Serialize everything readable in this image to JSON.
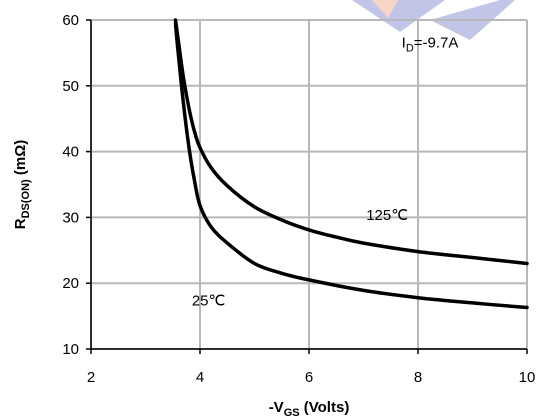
{
  "chart_data": {
    "type": "line",
    "xlabel": {
      "main": "-V",
      "sub": "GS",
      "rest": " (Volts)"
    },
    "ylabel": {
      "main": "R",
      "sub": "DS(ON)",
      "rest": " (mΩ)"
    },
    "xlim": [
      2,
      10
    ],
    "ylim": [
      10,
      60
    ],
    "xticks": [
      2,
      4,
      6,
      8,
      10
    ],
    "yticks": [
      10,
      20,
      30,
      40,
      50,
      60
    ],
    "grid": true,
    "series": [
      {
        "name": "125℃",
        "color": "#000000",
        "points": [
          [
            3.55,
            60
          ],
          [
            3.6,
            57
          ],
          [
            3.7,
            51
          ],
          [
            3.8,
            46.5
          ],
          [
            3.9,
            43
          ],
          [
            4.0,
            40.6
          ],
          [
            4.2,
            37.6
          ],
          [
            4.5,
            34.8
          ],
          [
            5.0,
            31.6
          ],
          [
            5.5,
            29.6
          ],
          [
            6.0,
            28.1
          ],
          [
            6.5,
            27.0
          ],
          [
            7.0,
            26.1
          ],
          [
            8.0,
            24.8
          ],
          [
            9.0,
            23.9
          ],
          [
            10.0,
            23.0
          ]
        ]
      },
      {
        "name": "25℃",
        "color": "#000000",
        "points": [
          [
            3.55,
            59.5
          ],
          [
            3.6,
            55
          ],
          [
            3.7,
            47
          ],
          [
            3.8,
            40.5
          ],
          [
            3.9,
            35.5
          ],
          [
            4.0,
            31.8
          ],
          [
            4.2,
            28.6
          ],
          [
            4.5,
            26.1
          ],
          [
            5.0,
            23.0
          ],
          [
            5.5,
            21.5
          ],
          [
            6.0,
            20.5
          ],
          [
            7.0,
            18.9
          ],
          [
            8.0,
            17.8
          ],
          [
            9.0,
            17.0
          ],
          [
            10.0,
            16.3
          ]
        ]
      }
    ],
    "annotations": [
      {
        "id": "id",
        "main": "I",
        "sub": "D",
        "rest": "=-9.7A",
        "x": 7.7,
        "y": 55.8,
        "color": "#7a7a7a"
      },
      {
        "id": "t125",
        "text": "125℃",
        "x": 7.05,
        "y": 29.6,
        "color": "#7a7a7a"
      },
      {
        "id": "t25",
        "text": "25℃",
        "x": 3.85,
        "y": 16.6,
        "color": "#000000"
      }
    ]
  }
}
